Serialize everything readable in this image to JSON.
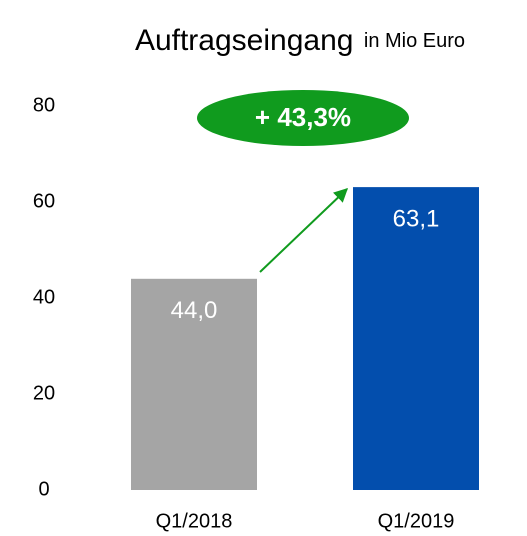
{
  "chart_data": {
    "type": "bar",
    "title": "Auftragseingang",
    "subtitle": "in Mio Euro",
    "categories": [
      "Q1/2018",
      "Q1/2019"
    ],
    "values": [
      44.0,
      63.1
    ],
    "value_labels": [
      "44,0",
      "63,1"
    ],
    "colors": [
      "#a5a5a5",
      "#034ead"
    ],
    "ylim": [
      0,
      80
    ],
    "yticks": [
      0,
      20,
      40,
      60,
      80
    ],
    "grid": false,
    "annotation": "+ 43,3%"
  }
}
